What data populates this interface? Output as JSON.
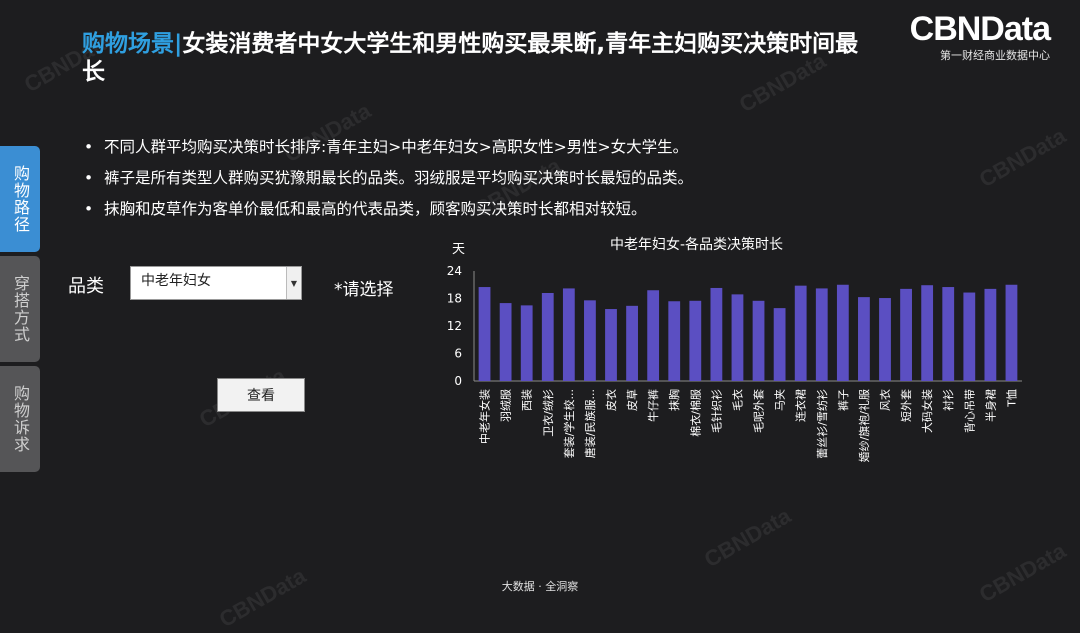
{
  "header": {
    "title_accent": "购物场景|",
    "title_rest": "女装消费者中女大学生和男性购买最果断,青年主妇购买决策时间最长"
  },
  "logo": {
    "brand": "CBNData",
    "subtitle": "第一财经商业数据中心"
  },
  "watermark": "CBNData",
  "bullets": [
    "不同人群平均购买决策时长排序:青年主妇>中老年妇女>高职女性>男性>女大学生。",
    "裤子是所有类型人群购买犹豫期最长的品类。羽绒服是平均购买决策时长最短的品类。",
    "抹胸和皮草作为客单价最低和最高的代表品类，顾客购买决策时长都相对较短。"
  ],
  "sidebar": {
    "tabs": [
      "购物路径",
      "穿搭方式",
      "购物诉求"
    ]
  },
  "filter": {
    "label": "品类",
    "selected": "中老年妇女",
    "hint": "*请选择",
    "button": "查看"
  },
  "chart_data": {
    "type": "bar",
    "title": "中老年妇女-各品类决策时长",
    "ylabel": "天",
    "ylim": [
      0,
      24
    ],
    "yticks": [
      0,
      6,
      12,
      18,
      24
    ],
    "color": "#5b4fc2",
    "categories": [
      "中老年女装",
      "羽绒服",
      "西装",
      "卫衣/绒衫",
      "套装/学生校...",
      "唐装/民族服...",
      "皮衣",
      "皮草",
      "牛仔裤",
      "抹胸",
      "棉衣/棉服",
      "毛针织衫",
      "毛衣",
      "毛呢外套",
      "马夹",
      "连衣裙",
      "蕾丝衫/雪纺衫",
      "裤子",
      "婚纱/旗袍/礼服",
      "风衣",
      "短外套",
      "大码女装",
      "衬衫",
      "背心吊带",
      "半身裙",
      "T恤"
    ],
    "values": [
      20.5,
      17,
      16.5,
      19.2,
      20.2,
      17.6,
      15.7,
      16.4,
      19.8,
      17.4,
      17.5,
      20.3,
      18.9,
      17.5,
      15.9,
      20.8,
      20.2,
      21,
      18.3,
      18.1,
      20.1,
      20.9,
      20.5,
      19.3,
      20.1,
      21
    ]
  },
  "footer": "大数据 · 全洞察"
}
